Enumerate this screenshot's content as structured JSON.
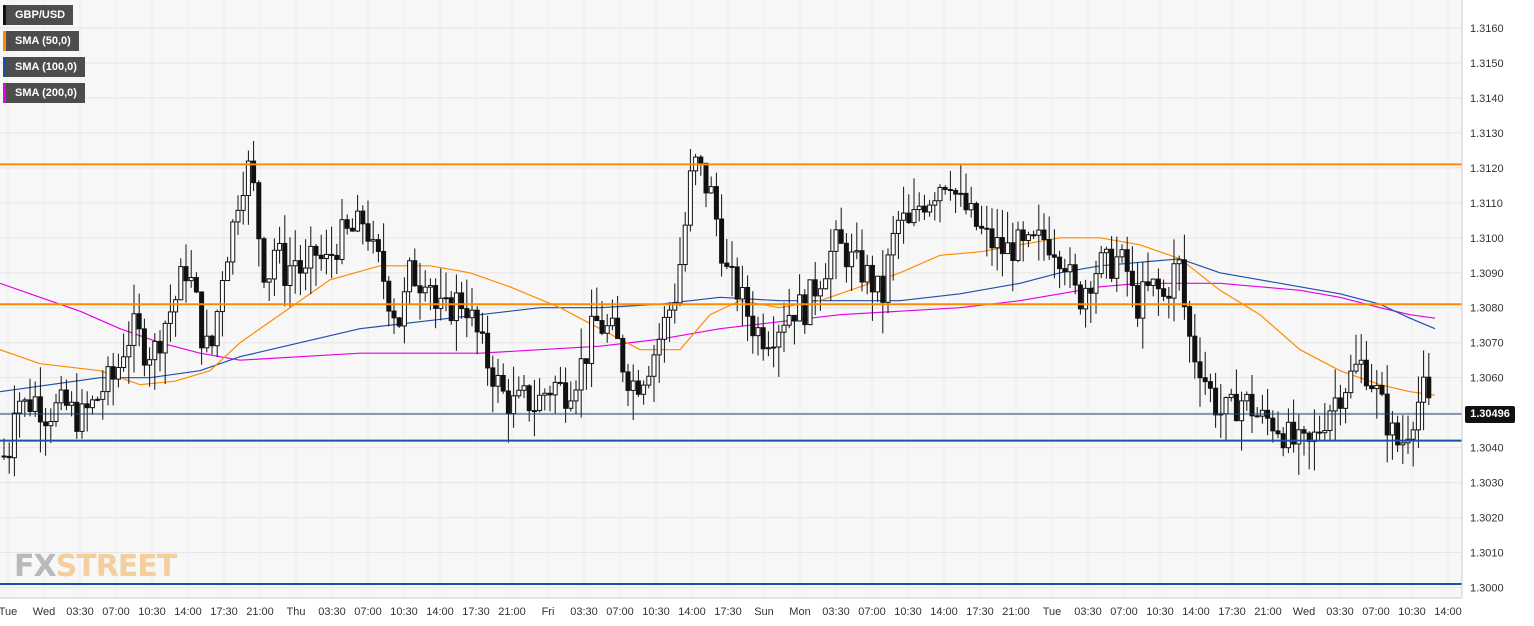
{
  "chart_data": {
    "type": "candlestick",
    "instrument": "GBP/USD",
    "legend": [
      {
        "label": "GBP/USD",
        "color": "#111111"
      },
      {
        "label": "SMA (50,0)",
        "color": "#ff8c00"
      },
      {
        "label": "SMA (100,0)",
        "color": "#1f4fa8"
      },
      {
        "label": "SMA (200,0)",
        "color": "#e600e6"
      }
    ],
    "ylim": [
      1.2997,
      1.3168
    ],
    "y_ticks": [
      "1.3000",
      "1.3010",
      "1.3020",
      "1.3030",
      "1.3040",
      "1.3050",
      "1.3060",
      "1.3070",
      "1.3080",
      "1.3090",
      "1.3100",
      "1.3110",
      "1.3120",
      "1.3130",
      "1.3140",
      "1.3150",
      "1.3160"
    ],
    "x_ticks": [
      "Tue",
      "Wed",
      "03:30",
      "07:00",
      "10:30",
      "14:00",
      "17:30",
      "21:00",
      "Thu",
      "03:30",
      "07:00",
      "10:30",
      "14:00",
      "17:30",
      "21:00",
      "Fri",
      "03:30",
      "07:00",
      "10:30",
      "14:00",
      "17:30",
      "Sun",
      "Mon",
      "03:30",
      "07:00",
      "10:30",
      "14:00",
      "17:30",
      "21:00",
      "Tue",
      "03:30",
      "07:00",
      "10:30",
      "14:00",
      "17:30",
      "21:00",
      "Wed",
      "03:30",
      "07:00",
      "10:30",
      "14:00"
    ],
    "horizontal_levels": [
      {
        "value": 1.3121,
        "color": "#ff8c00"
      },
      {
        "value": 1.3081,
        "color": "#ff8c00"
      },
      {
        "value": 1.3042,
        "color": "#1f4fa8"
      },
      {
        "value": 1.3001,
        "color": "#1f4fa8"
      }
    ],
    "last_price": "1.30496",
    "close_path": [
      [
        0,
        1.3036
      ],
      [
        10,
        1.304
      ],
      [
        15,
        1.3056
      ],
      [
        25,
        1.3052
      ],
      [
        35,
        1.3054
      ],
      [
        45,
        1.305
      ],
      [
        65,
        1.3052
      ],
      [
        80,
        1.3048
      ],
      [
        95,
        1.3053
      ],
      [
        105,
        1.3058
      ],
      [
        115,
        1.306
      ],
      [
        125,
        1.307
      ],
      [
        135,
        1.3074
      ],
      [
        145,
        1.3068
      ],
      [
        155,
        1.3068
      ],
      [
        165,
        1.3076
      ],
      [
        175,
        1.3082
      ],
      [
        185,
        1.3092
      ],
      [
        195,
        1.3084
      ],
      [
        200,
        1.3074
      ],
      [
        210,
        1.3066
      ],
      [
        215,
        1.3074
      ],
      [
        222,
        1.309
      ],
      [
        232,
        1.3102
      ],
      [
        240,
        1.3115
      ],
      [
        248,
        1.312
      ],
      [
        255,
        1.3112
      ],
      [
        262,
        1.3092
      ],
      [
        270,
        1.309
      ],
      [
        275,
        1.3098
      ],
      [
        285,
        1.309
      ],
      [
        295,
        1.3094
      ],
      [
        305,
        1.3088
      ],
      [
        315,
        1.3096
      ],
      [
        325,
        1.3092
      ],
      [
        340,
        1.31
      ],
      [
        355,
        1.3102
      ],
      [
        365,
        1.3106
      ],
      [
        372,
        1.3096
      ],
      [
        380,
        1.3092
      ],
      [
        390,
        1.3082
      ],
      [
        400,
        1.3076
      ],
      [
        410,
        1.309
      ],
      [
        420,
        1.3088
      ],
      [
        428,
        1.3092
      ],
      [
        435,
        1.308
      ],
      [
        445,
        1.3078
      ],
      [
        455,
        1.3082
      ],
      [
        465,
        1.3082
      ],
      [
        475,
        1.3074
      ],
      [
        485,
        1.3066
      ],
      [
        495,
        1.306
      ],
      [
        505,
        1.3054
      ],
      [
        515,
        1.3052
      ],
      [
        525,
        1.3054
      ],
      [
        535,
        1.3052
      ],
      [
        545,
        1.3056
      ],
      [
        555,
        1.3058
      ],
      [
        565,
        1.3056
      ],
      [
        575,
        1.306
      ],
      [
        585,
        1.3066
      ],
      [
        595,
        1.3076
      ],
      [
        605,
        1.3074
      ],
      [
        615,
        1.3072
      ],
      [
        625,
        1.3062
      ],
      [
        635,
        1.3058
      ],
      [
        645,
        1.3062
      ],
      [
        655,
        1.3068
      ],
      [
        665,
        1.3076
      ],
      [
        675,
        1.3084
      ],
      [
        683,
        1.3098
      ],
      [
        690,
        1.3116
      ],
      [
        697,
        1.3122
      ],
      [
        704,
        1.3116
      ],
      [
        712,
        1.3112
      ],
      [
        720,
        1.31
      ],
      [
        728,
        1.3088
      ],
      [
        736,
        1.3086
      ],
      [
        745,
        1.308
      ],
      [
        755,
        1.3074
      ],
      [
        765,
        1.3072
      ],
      [
        775,
        1.3074
      ],
      [
        785,
        1.3078
      ],
      [
        795,
        1.308
      ],
      [
        805,
        1.308
      ],
      [
        815,
        1.3086
      ],
      [
        825,
        1.3092
      ],
      [
        835,
        1.3098
      ],
      [
        845,
        1.3096
      ],
      [
        855,
        1.3092
      ],
      [
        865,
        1.309
      ],
      [
        875,
        1.3086
      ],
      [
        882,
        1.3082
      ],
      [
        890,
        1.3096
      ],
      [
        900,
        1.3106
      ],
      [
        910,
        1.3102
      ],
      [
        920,
        1.311
      ],
      [
        930,
        1.3112
      ],
      [
        940,
        1.3116
      ],
      [
        950,
        1.3118
      ],
      [
        958,
        1.311
      ],
      [
        966,
        1.3108
      ],
      [
        975,
        1.3104
      ],
      [
        985,
        1.31
      ],
      [
        995,
        1.3098
      ],
      [
        1005,
        1.3096
      ],
      [
        1015,
        1.3098
      ],
      [
        1025,
        1.3096
      ],
      [
        1035,
        1.3098
      ],
      [
        1045,
        1.31
      ],
      [
        1055,
        1.3098
      ],
      [
        1065,
        1.3094
      ],
      [
        1072,
        1.3086
      ],
      [
        1078,
        1.3082
      ],
      [
        1088,
        1.3088
      ],
      [
        1098,
        1.3092
      ],
      [
        1108,
        1.3092
      ],
      [
        1118,
        1.3094
      ],
      [
        1128,
        1.309
      ],
      [
        1135,
        1.308
      ],
      [
        1145,
        1.3084
      ],
      [
        1155,
        1.3086
      ],
      [
        1165,
        1.3082
      ],
      [
        1172,
        1.309
      ],
      [
        1180,
        1.3092
      ],
      [
        1186,
        1.3076
      ],
      [
        1192,
        1.3068
      ],
      [
        1200,
        1.3064
      ],
      [
        1210,
        1.3056
      ],
      [
        1220,
        1.305
      ],
      [
        1230,
        1.305
      ],
      [
        1240,
        1.3054
      ],
      [
        1250,
        1.3052
      ],
      [
        1260,
        1.3048
      ],
      [
        1270,
        1.3048
      ],
      [
        1280,
        1.3046
      ],
      [
        1290,
        1.3042
      ],
      [
        1300,
        1.304
      ],
      [
        1310,
        1.304
      ],
      [
        1320,
        1.3046
      ],
      [
        1330,
        1.3052
      ],
      [
        1340,
        1.3056
      ],
      [
        1350,
        1.306
      ],
      [
        1360,
        1.3064
      ],
      [
        1368,
        1.3062
      ],
      [
        1376,
        1.3056
      ],
      [
        1384,
        1.305
      ],
      [
        1392,
        1.3044
      ],
      [
        1400,
        1.304
      ],
      [
        1408,
        1.3046
      ],
      [
        1416,
        1.3052
      ],
      [
        1424,
        1.3056
      ],
      [
        1430,
        1.305
      ]
    ],
    "sma50": [
      [
        0,
        1.3068
      ],
      [
        40,
        1.3064
      ],
      [
        100,
        1.3062
      ],
      [
        140,
        1.3058
      ],
      [
        175,
        1.3059
      ],
      [
        210,
        1.3062
      ],
      [
        240,
        1.307
      ],
      [
        280,
        1.3078
      ],
      [
        330,
        1.3088
      ],
      [
        380,
        1.3092
      ],
      [
        430,
        1.3092
      ],
      [
        470,
        1.309
      ],
      [
        510,
        1.3086
      ],
      [
        560,
        1.308
      ],
      [
        600,
        1.3074
      ],
      [
        640,
        1.3068
      ],
      [
        680,
        1.3068
      ],
      [
        710,
        1.3078
      ],
      [
        740,
        1.3082
      ],
      [
        780,
        1.308
      ],
      [
        820,
        1.3082
      ],
      [
        860,
        1.3086
      ],
      [
        900,
        1.309
      ],
      [
        940,
        1.3095
      ],
      [
        980,
        1.3096
      ],
      [
        1020,
        1.3098
      ],
      [
        1060,
        1.31
      ],
      [
        1100,
        1.31
      ],
      [
        1140,
        1.3098
      ],
      [
        1180,
        1.3094
      ],
      [
        1220,
        1.3085
      ],
      [
        1260,
        1.3078
      ],
      [
        1300,
        1.3068
      ],
      [
        1340,
        1.3062
      ],
      [
        1380,
        1.3058
      ],
      [
        1410,
        1.3056
      ],
      [
        1435,
        1.3055
      ]
    ],
    "sma100": [
      [
        0,
        1.3056
      ],
      [
        50,
        1.3058
      ],
      [
        100,
        1.306
      ],
      [
        150,
        1.306
      ],
      [
        200,
        1.3062
      ],
      [
        240,
        1.3066
      ],
      [
        300,
        1.307
      ],
      [
        360,
        1.3074
      ],
      [
        420,
        1.3076
      ],
      [
        480,
        1.3078
      ],
      [
        540,
        1.308
      ],
      [
        600,
        1.308
      ],
      [
        660,
        1.3081
      ],
      [
        720,
        1.3083
      ],
      [
        780,
        1.3082
      ],
      [
        840,
        1.3082
      ],
      [
        900,
        1.3082
      ],
      [
        960,
        1.3084
      ],
      [
        1020,
        1.3087
      ],
      [
        1060,
        1.309
      ],
      [
        1100,
        1.3092
      ],
      [
        1140,
        1.3093
      ],
      [
        1180,
        1.3094
      ],
      [
        1220,
        1.309
      ],
      [
        1260,
        1.3088
      ],
      [
        1300,
        1.3086
      ],
      [
        1340,
        1.3084
      ],
      [
        1380,
        1.3081
      ],
      [
        1410,
        1.3077
      ],
      [
        1435,
        1.3074
      ]
    ],
    "sma200": [
      [
        0,
        1.3087
      ],
      [
        40,
        1.3083
      ],
      [
        80,
        1.3079
      ],
      [
        120,
        1.3074
      ],
      [
        160,
        1.307
      ],
      [
        200,
        1.3067
      ],
      [
        240,
        1.3065
      ],
      [
        300,
        1.3066
      ],
      [
        360,
        1.3067
      ],
      [
        420,
        1.3067
      ],
      [
        480,
        1.3067
      ],
      [
        540,
        1.3068
      ],
      [
        600,
        1.3069
      ],
      [
        660,
        1.3071
      ],
      [
        720,
        1.3074
      ],
      [
        780,
        1.3076
      ],
      [
        840,
        1.3078
      ],
      [
        900,
        1.3079
      ],
      [
        960,
        1.308
      ],
      [
        1020,
        1.3082
      ],
      [
        1060,
        1.3084
      ],
      [
        1100,
        1.3086
      ],
      [
        1140,
        1.3087
      ],
      [
        1180,
        1.3087
      ],
      [
        1220,
        1.3087
      ],
      [
        1260,
        1.3086
      ],
      [
        1300,
        1.3085
      ],
      [
        1340,
        1.3083
      ],
      [
        1380,
        1.308
      ],
      [
        1410,
        1.3078
      ],
      [
        1435,
        1.3077
      ]
    ]
  },
  "watermark": {
    "part1": "FX",
    "part2": "STREET"
  }
}
